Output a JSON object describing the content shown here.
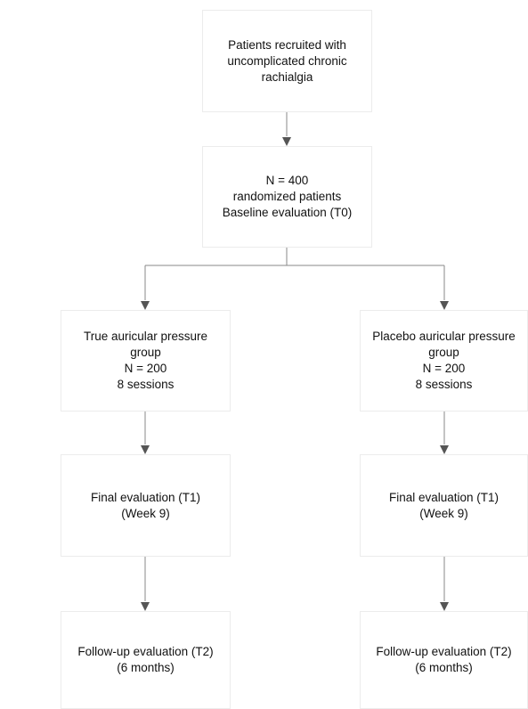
{
  "nodes": {
    "recruit": {
      "lines": [
        "Patients recruited with",
        "uncomplicated chronic",
        "rachialgia"
      ]
    },
    "randomized": {
      "lines": [
        "N = 400",
        "randomized patients",
        "Baseline evaluation (T0)"
      ]
    },
    "true_group": {
      "lines": [
        "True auricular pressure",
        "group",
        "N = 200",
        "8 sessions"
      ]
    },
    "placebo_group": {
      "lines": [
        "Placebo auricular pressure",
        "group",
        "N = 200",
        "8 sessions"
      ]
    },
    "final_true": {
      "lines": [
        "Final evaluation (T1)",
        "(Week 9)"
      ]
    },
    "final_placebo": {
      "lines": [
        "Final evaluation (T1)",
        "(Week 9)"
      ]
    },
    "followup_true": {
      "lines": [
        "Follow-up evaluation (T2)",
        "(6 months)"
      ]
    },
    "followup_placebo": {
      "lines": [
        "Follow-up evaluation (T2)",
        "(6 months)"
      ]
    }
  },
  "colors": {
    "box_border": "#ececec",
    "connector": "#8a8a8a",
    "arrowhead": "#555555",
    "text": "#111111"
  }
}
